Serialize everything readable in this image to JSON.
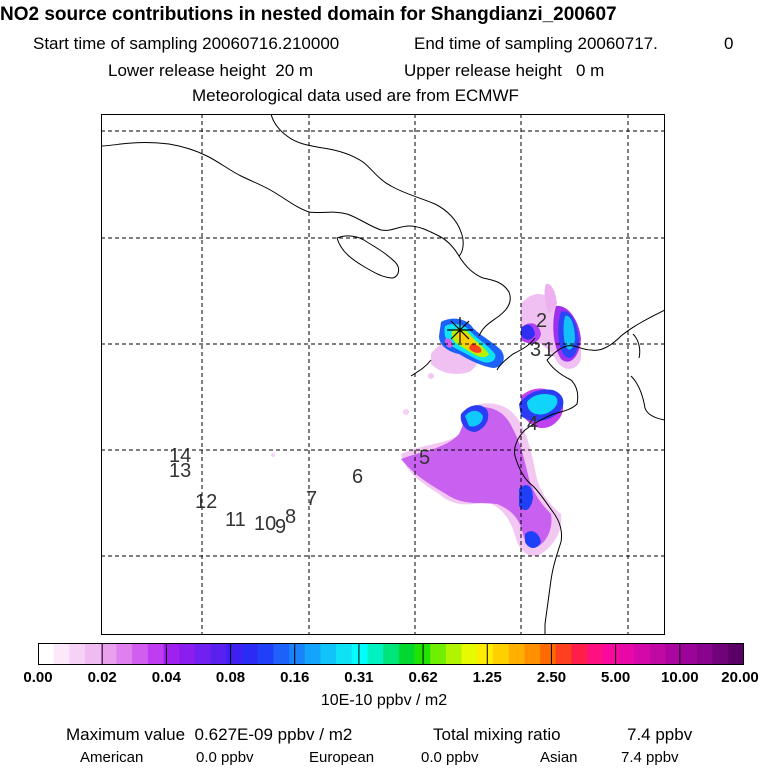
{
  "header": {
    "title": "NO2 source contributions in nested domain for Shangdianzi_200607",
    "start_label": "Start time of sampling",
    "start_value": "20060716.210000",
    "end_label": "End time of sampling",
    "end_value": "20060717.",
    "end_extra": "0",
    "lower_label": "Lower release height",
    "lower_value": "20 m",
    "upper_label": "Upper release height",
    "upper_value": "0 m",
    "met_line": "Meteorological data used are from ECMWF"
  },
  "map": {
    "trajectory_labels": [
      "2",
      "3",
      "1",
      "4",
      "5",
      "6",
      "7",
      "8",
      "9",
      "10",
      "11",
      "12",
      "13",
      "14"
    ],
    "receptor_marker": "star"
  },
  "colorbar": {
    "ticks": [
      "0.00",
      "0.02",
      "0.04",
      "0.08",
      "0.16",
      "0.31",
      "0.62",
      "1.25",
      "2.50",
      "5.00",
      "10.00",
      "20.00"
    ],
    "units": "10E-10 ppbv / m2",
    "colors": [
      "#ffffff",
      "#fbe8fb",
      "#f6d2f6",
      "#f0baf2",
      "#e8a0ef",
      "#df80ee",
      "#d25ef0",
      "#c03cf2",
      "#a020f0",
      "#8a1ef0",
      "#7020f0",
      "#5a20f0",
      "#3f20f2",
      "#2a2cf6",
      "#2040f8",
      "#1e60fa",
      "#1a82fb",
      "#14a4fb",
      "#10c4fa",
      "#10e2f6",
      "#00ffff",
      "#00f2c0",
      "#00e47c",
      "#00d830",
      "#20e400",
      "#70ee00",
      "#b0f400",
      "#e6fa00",
      "#ffec00",
      "#ffd000",
      "#ffb000",
      "#ff9000",
      "#ff6a00",
      "#ff4020",
      "#ff1e4a",
      "#ff1080",
      "#f80aa0",
      "#e808a8",
      "#d408a8",
      "#c008a4",
      "#ac06a0",
      "#9a0498",
      "#88048c",
      "#70027a",
      "#5a0064"
    ]
  },
  "footer": {
    "max_label": "Maximum value",
    "max_value": "0.627E-09 ppbv / m2",
    "total_label": "Total mixing ratio",
    "total_value": "7.4 ppbv",
    "american_label": "American",
    "american_value": "0.0 ppbv",
    "european_label": "European",
    "european_value": "0.0 ppbv",
    "asian_label": "Asian",
    "asian_value": "7.4 ppbv"
  }
}
